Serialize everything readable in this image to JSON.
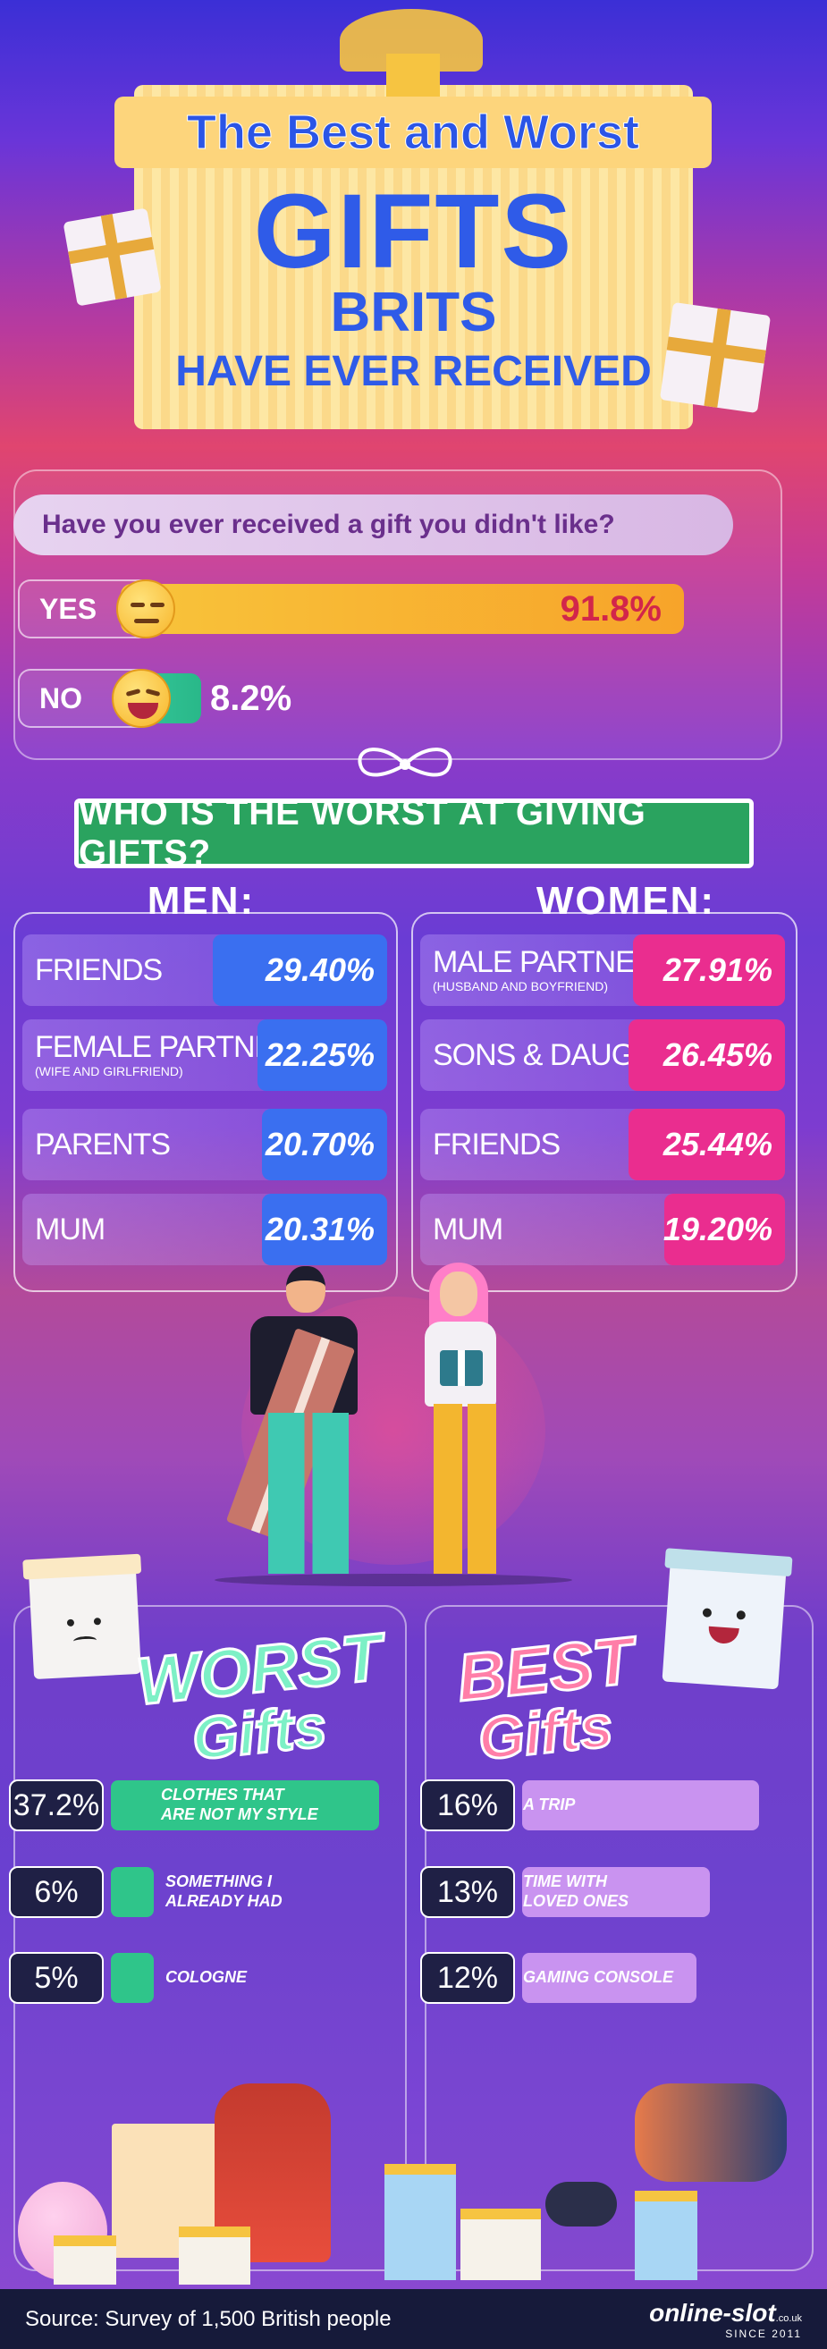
{
  "title": {
    "line1": "The Best and Worst",
    "line2": "GIFTS",
    "line3": "BRITS",
    "line4": "HAVE EVER RECEIVED"
  },
  "survey": {
    "question": "Have you ever received a gift you didn't like?",
    "yes_label": "YES",
    "yes_value": "91.8%",
    "yes_fraction": 0.918,
    "no_label": "NO",
    "no_value": "8.2%",
    "no_fraction": 0.082
  },
  "worst_givers": {
    "header": "WHO IS THE WORST AT GIVING GIFTS?",
    "men": {
      "title": "MEN:",
      "rows": [
        {
          "label": "FRIENDS",
          "sub": "",
          "value": "29.40%"
        },
        {
          "label": "FEMALE PARTNER",
          "sub": "(WIFE AND GIRLFRIEND)",
          "value": "22.25%"
        },
        {
          "label": "PARENTS",
          "sub": "",
          "value": "20.70%"
        },
        {
          "label": "MUM",
          "sub": "",
          "value": "20.31%"
        }
      ]
    },
    "women": {
      "title": "WOMEN:",
      "rows": [
        {
          "label": "MALE PARTNER",
          "sub": "(HUSBAND AND BOYFRIEND)",
          "value": "27.91%"
        },
        {
          "label": "SONS & DAUGHTERS",
          "sub": "",
          "value": "26.45%"
        },
        {
          "label": "FRIENDS",
          "sub": "",
          "value": "25.44%"
        },
        {
          "label": "MUM",
          "sub": "",
          "value": "19.20%"
        }
      ]
    }
  },
  "worst_gifts": {
    "title_line1": "WORST",
    "title_line2": "Gifts",
    "items": [
      {
        "value": "37.2%",
        "label_line1": "CLOTHES THAT",
        "label_line2": "ARE NOT MY STYLE"
      },
      {
        "value": "6%",
        "label_line1": "SOMETHING I",
        "label_line2": "ALREADY HAD"
      },
      {
        "value": "5%",
        "label_line1": "COLOGNE",
        "label_line2": ""
      }
    ]
  },
  "best_gifts": {
    "title_line1": "BEST",
    "title_line2": "Gifts",
    "items": [
      {
        "value": "16%",
        "label_line1": "A TRIP",
        "label_line2": ""
      },
      {
        "value": "13%",
        "label_line1": "TIME WITH",
        "label_line2": "LOVED ONES"
      },
      {
        "value": "12%",
        "label_line1": "GAMING CONSOLE",
        "label_line2": ""
      }
    ]
  },
  "footer": {
    "source": "Source: Survey of 1,500 British people",
    "brand": "online-slot",
    "brand_tld": ".co.uk",
    "since": "SINCE 2011"
  },
  "colors": {
    "men_bar": "#3a6ff0",
    "women_bar": "#ea2d8f",
    "worst_bar": "#2fc58a",
    "best_bar": "#c993f0",
    "yes_bar": "#f8c43b",
    "no_bar": "#37c79b"
  }
}
